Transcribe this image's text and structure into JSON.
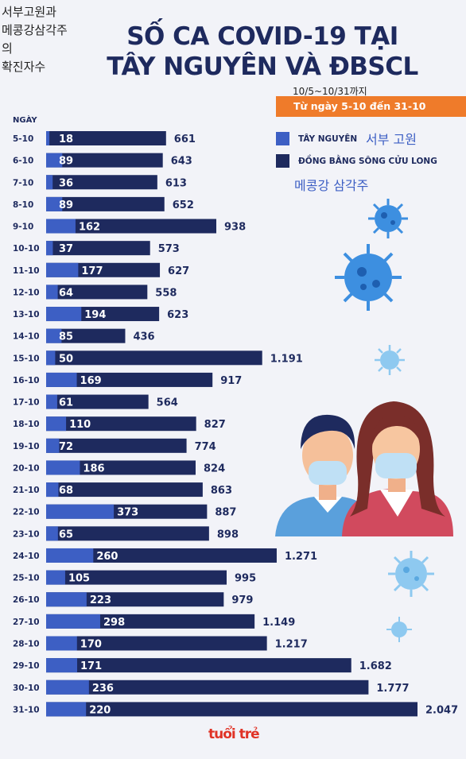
{
  "overlay_korean": "서부고원과\n메콩강삼각주\n의\n확진자수",
  "title_line1": "SỐ CA COVID-19 TẠI",
  "title_line2": "TÂY NGUYÊN VÀ ĐBSCL",
  "date_range_kr": "10/5~10/31까지",
  "date_range": "Từ ngày 5-10 đến 31-10",
  "legend": [
    {
      "label": "TÂY NGUYÊN",
      "label_kr": "서부 고원",
      "color": "#3d5fc4"
    },
    {
      "label": "ĐỒNG BẰNG SÔNG CỬU LONG",
      "label_kr": "메콩강 삼각주",
      "color": "#1e2a5e"
    }
  ],
  "logo": "tuổi trẻ",
  "chart_data": {
    "type": "bar",
    "orientation": "horizontal",
    "stacked": "overlay",
    "xlabel": "NGÀY",
    "categories": [
      "5-10",
      "6-10",
      "7-10",
      "8-10",
      "9-10",
      "10-10",
      "11-10",
      "12-10",
      "13-10",
      "14-10",
      "15-10",
      "16-10",
      "17-10",
      "18-10",
      "19-10",
      "20-10",
      "21-10",
      "22-10",
      "23-10",
      "24-10",
      "25-10",
      "26-10",
      "27-10",
      "28-10",
      "29-10",
      "30-10",
      "31-10"
    ],
    "series": [
      {
        "name": "TÂY NGUYÊN",
        "color": "#3d5fc4",
        "values": [
          18,
          89,
          36,
          89,
          162,
          37,
          177,
          64,
          194,
          85,
          50,
          169,
          61,
          110,
          72,
          186,
          68,
          373,
          65,
          260,
          105,
          223,
          298,
          170,
          171,
          236,
          220
        ],
        "labels": [
          "18",
          "89",
          "36",
          "89",
          "162",
          "37",
          "177",
          "64",
          "194",
          "85",
          "50",
          "169",
          "61",
          "110",
          "72",
          "186",
          "68",
          "373",
          "65",
          "260",
          "105",
          "223",
          "298",
          "170",
          "171",
          "236",
          "220"
        ]
      },
      {
        "name": "ĐỒNG BẰNG SÔNG CỬU LONG",
        "color": "#1e2a5e",
        "values": [
          661,
          643,
          613,
          652,
          938,
          573,
          627,
          558,
          623,
          436,
          1191,
          917,
          564,
          827,
          774,
          824,
          863,
          887,
          898,
          1271,
          995,
          979,
          1149,
          1217,
          1682,
          1777,
          2047
        ],
        "labels": [
          "661",
          "643",
          "613",
          "652",
          "938",
          "573",
          "627",
          "558",
          "623",
          "436",
          "1.191",
          "917",
          "564",
          "827",
          "774",
          "824",
          "863",
          "887",
          "898",
          "1.271",
          "995",
          "979",
          "1.149",
          "1.217",
          "1.682",
          "1.777",
          "2.047"
        ]
      }
    ],
    "xlim": [
      0,
      2047
    ]
  }
}
